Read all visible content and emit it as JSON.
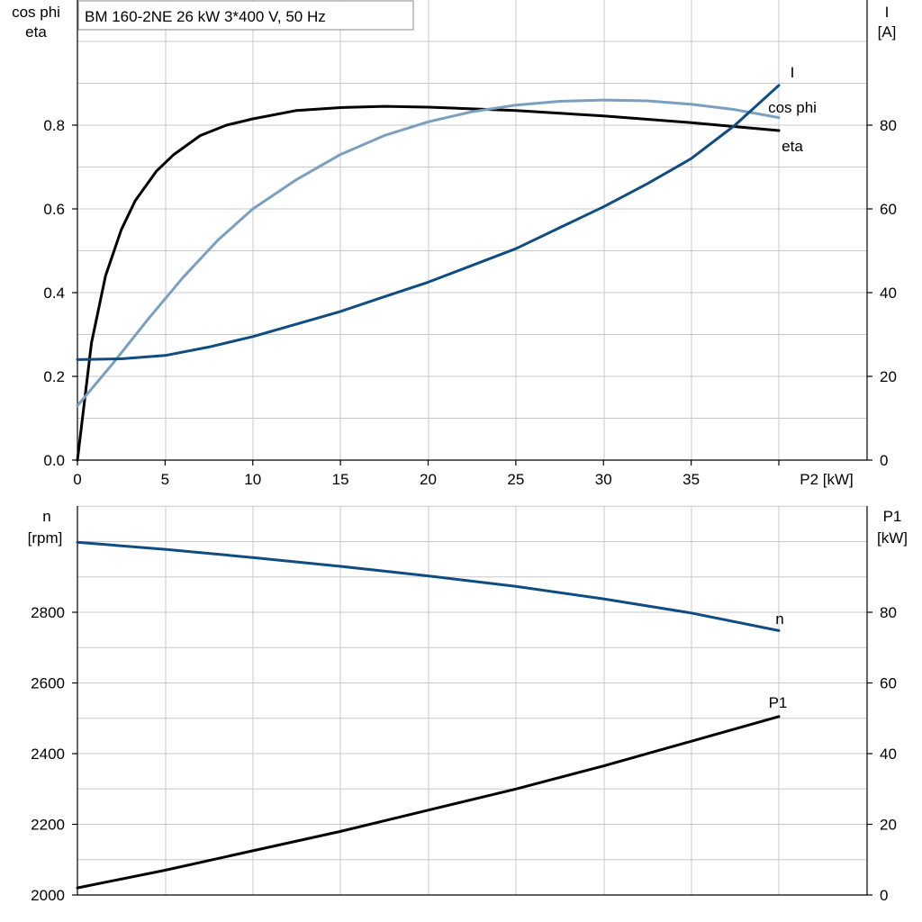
{
  "chart_data": [
    {
      "type": "line",
      "title": "BM 160-2NE   26 kW   3*400 V, 50 Hz",
      "xlabel": "P2 [kW]",
      "ylabel_left": [
        "cos phi",
        "eta"
      ],
      "ylabel_right": [
        "I",
        "[A]"
      ],
      "xlim": [
        0,
        45
      ],
      "x_ticks": [
        "0",
        "5",
        "10",
        "15",
        "20",
        "25",
        "30",
        "35"
      ],
      "ylim_left": [
        0,
        1.0
      ],
      "y_ticks_left": [
        "0.0",
        "0.2",
        "0.4",
        "0.6",
        "0.8"
      ],
      "ylim_right": [
        0,
        100
      ],
      "y_ticks_right": [
        "0",
        "20",
        "40",
        "60",
        "80"
      ],
      "grid": true,
      "series": [
        {
          "name": "eta",
          "axis": "left",
          "color": "#000000",
          "x": [
            0,
            0.8,
            1.6,
            2.5,
            3.3,
            4.5,
            5.5,
            7,
            8.5,
            10,
            12.5,
            15,
            17.5,
            20,
            25,
            30,
            35,
            40
          ],
          "y": [
            0.0,
            0.28,
            0.44,
            0.55,
            0.62,
            0.69,
            0.73,
            0.775,
            0.8,
            0.815,
            0.835,
            0.842,
            0.845,
            0.843,
            0.835,
            0.822,
            0.806,
            0.787
          ]
        },
        {
          "name": "cos phi",
          "axis": "left",
          "color": "#7a9fbf",
          "x": [
            0,
            2,
            4,
            6,
            8,
            10,
            12.5,
            15,
            17.5,
            20,
            22.5,
            25,
            27.5,
            30,
            32.5,
            35,
            37.5,
            40
          ],
          "y": [
            0.13,
            0.23,
            0.335,
            0.435,
            0.525,
            0.6,
            0.67,
            0.73,
            0.775,
            0.808,
            0.832,
            0.848,
            0.857,
            0.86,
            0.858,
            0.85,
            0.837,
            0.818
          ]
        },
        {
          "name": "I",
          "axis": "right",
          "color": "#0f4c81",
          "x": [
            0,
            2.5,
            5,
            7.5,
            10,
            12.5,
            15,
            17.5,
            20,
            22.5,
            25,
            27.5,
            30,
            32.5,
            35,
            37.5,
            40
          ],
          "y": [
            24,
            24.2,
            25,
            27,
            29.5,
            32.5,
            35.5,
            39,
            42.5,
            46.5,
            50.5,
            55.5,
            60.5,
            66,
            72,
            80,
            89.5
          ]
        }
      ],
      "curve_labels": [
        "I",
        "cos phi",
        "eta"
      ]
    },
    {
      "type": "line",
      "xlim": [
        0,
        45
      ],
      "ylabel_left": [
        "n",
        "[rpm]"
      ],
      "ylabel_right": [
        "P1",
        "[kW]"
      ],
      "ylim_left": [
        2000,
        3100
      ],
      "y_ticks_left": [
        "2000",
        "2200",
        "2400",
        "2600",
        "2800"
      ],
      "ylim_right": [
        0,
        110
      ],
      "y_ticks_right": [
        "0",
        "20",
        "40",
        "60",
        "80"
      ],
      "grid": true,
      "series": [
        {
          "name": "n",
          "axis": "left",
          "color": "#0f4c81",
          "x": [
            0,
            5,
            10,
            15,
            20,
            25,
            30,
            35,
            40
          ],
          "y": [
            2998,
            2978,
            2955,
            2930,
            2903,
            2873,
            2838,
            2798,
            2748
          ]
        },
        {
          "name": "P1",
          "axis": "right",
          "color": "#000000",
          "x": [
            0,
            5,
            10,
            15,
            20,
            25,
            30,
            35,
            40
          ],
          "y": [
            2,
            7,
            12.5,
            18,
            24,
            30,
            36.5,
            43.5,
            50.5
          ]
        }
      ],
      "curve_labels": [
        "n",
        "P1"
      ]
    }
  ]
}
